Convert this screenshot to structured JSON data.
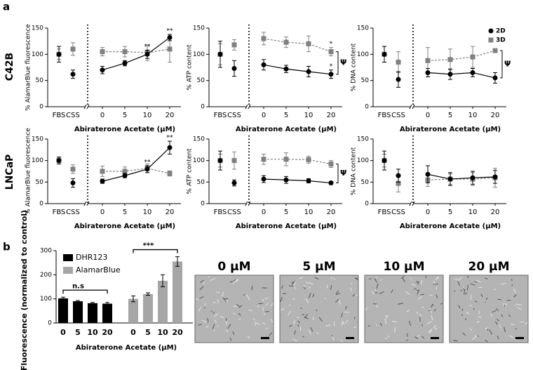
{
  "panel_labels": [
    "a",
    "b"
  ],
  "row_labels": [
    "C42B",
    "LNCaP"
  ],
  "images": [
    {
      "label": "0 µM"
    },
    {
      "label": "5 µM"
    },
    {
      "label": "10 µM"
    },
    {
      "label": "20 µM"
    }
  ],
  "chart_data": [
    {
      "type": "line",
      "ylabel": "% AlamarBlue fluorescence",
      "xlabel": "Abiraterone Acetate (µM)",
      "ylim": [
        0,
        150
      ],
      "yticks": [
        0,
        50,
        100,
        150
      ],
      "control_categories": [
        "FBS",
        "CSS"
      ],
      "categories": [
        "0",
        "5",
        "10",
        "20"
      ],
      "series": [
        {
          "color": "#000000",
          "marker": "circle",
          "dashed": false,
          "control_values": [
            100,
            62
          ],
          "control_errors": [
            15,
            8
          ],
          "values": [
            70,
            83,
            100,
            132
          ],
          "errors": [
            7,
            5,
            8,
            6
          ],
          "annotations": [
            null,
            null,
            "**",
            "**"
          ]
        },
        {
          "color": "#808080",
          "marker": "square",
          "dashed": true,
          "control_values": [
            100,
            110
          ],
          "control_errors": [
            10,
            12
          ],
          "values": [
            105,
            105,
            103,
            110
          ],
          "errors": [
            8,
            10,
            15,
            25
          ],
          "annotations": [
            null,
            null,
            null,
            null
          ]
        }
      ]
    },
    {
      "type": "line",
      "ylabel": "% ATP content",
      "xlabel": "Abiraterone Acetate (µM)",
      "ylim": [
        0,
        150
      ],
      "yticks": [
        0,
        50,
        100,
        150
      ],
      "control_categories": [
        "FBS",
        "CSS"
      ],
      "categories": [
        "0",
        "5",
        "10",
        "20"
      ],
      "bracket_label": "Ψ",
      "series": [
        {
          "color": "#000000",
          "marker": "circle",
          "dashed": false,
          "control_values": [
            100,
            73
          ],
          "control_errors": [
            25,
            15
          ],
          "values": [
            80,
            72,
            67,
            62
          ],
          "errors": [
            10,
            7,
            10,
            8
          ],
          "annotations": [
            null,
            null,
            null,
            "*"
          ]
        },
        {
          "color": "#808080",
          "marker": "square",
          "dashed": true,
          "control_values": [
            100,
            118
          ],
          "control_errors": [
            20,
            10
          ],
          "values": [
            130,
            123,
            120,
            105
          ],
          "errors": [
            12,
            10,
            15,
            8
          ],
          "annotations": [
            null,
            null,
            null,
            "*"
          ]
        }
      ]
    },
    {
      "type": "line",
      "ylabel": "% DNA content",
      "xlabel": "Abiraterone Acetate (µM)",
      "ylim": [
        0,
        150
      ],
      "yticks": [
        0,
        50,
        100,
        150
      ],
      "legend": "top-right",
      "control_categories": [
        "FBS",
        "CSS"
      ],
      "categories": [
        "0",
        "5",
        "10",
        "20"
      ],
      "bracket_label": "Ψ",
      "series": [
        {
          "name": "2D",
          "color": "#000000",
          "marker": "circle",
          "dashed": false,
          "control_values": [
            100,
            52
          ],
          "control_errors": [
            15,
            15
          ],
          "values": [
            65,
            62,
            65,
            55
          ],
          "errors": [
            8,
            10,
            8,
            10
          ],
          "annotations": [
            null,
            null,
            null,
            null
          ]
        },
        {
          "name": "3D",
          "color": "#808080",
          "marker": "square",
          "dashed": true,
          "control_values": [
            100,
            85
          ],
          "control_errors": [
            15,
            20
          ],
          "values": [
            88,
            90,
            95,
            107
          ],
          "errors": [
            25,
            20,
            20,
            3
          ],
          "annotations": [
            null,
            null,
            null,
            null
          ]
        }
      ]
    },
    {
      "type": "line",
      "ylabel": "% AlamarBlue fluorescence",
      "xlabel": "Abiraterone Acetate (µM)",
      "ylim": [
        0,
        150
      ],
      "yticks": [
        0,
        50,
        100,
        150
      ],
      "control_categories": [
        "FBS",
        "CSS"
      ],
      "categories": [
        "0",
        "5",
        "10",
        "20"
      ],
      "series": [
        {
          "color": "#000000",
          "marker": "circle",
          "dashed": false,
          "control_values": [
            100,
            48
          ],
          "control_errors": [
            8,
            10
          ],
          "values": [
            52,
            65,
            80,
            130
          ],
          "errors": [
            5,
            5,
            8,
            15
          ],
          "annotations": [
            null,
            null,
            "**",
            "**"
          ]
        },
        {
          "color": "#808080",
          "marker": "square",
          "dashed": true,
          "control_values": [
            100,
            80
          ],
          "control_errors": [
            8,
            10
          ],
          "values": [
            75,
            75,
            82,
            70
          ],
          "errors": [
            12,
            10,
            10,
            6
          ],
          "annotations": [
            null,
            null,
            null,
            null
          ]
        }
      ]
    },
    {
      "type": "line",
      "ylabel": "% ATP content",
      "xlabel": "Abiraterone Acetate (µM)",
      "ylim": [
        0,
        150
      ],
      "yticks": [
        0,
        50,
        100,
        150
      ],
      "control_categories": [
        "FBS",
        "CSS"
      ],
      "categories": [
        "0",
        "5",
        "10",
        "20"
      ],
      "bracket_label": "Ψ",
      "series": [
        {
          "color": "#000000",
          "marker": "circle",
          "dashed": false,
          "control_values": [
            100,
            48
          ],
          "control_errors": [
            22,
            7
          ],
          "values": [
            57,
            55,
            53,
            48
          ],
          "errors": [
            8,
            8,
            5,
            3
          ],
          "annotations": [
            null,
            null,
            null,
            null
          ]
        },
        {
          "color": "#808080",
          "marker": "square",
          "dashed": true,
          "control_values": [
            100,
            100
          ],
          "control_errors": [
            15,
            20
          ],
          "values": [
            103,
            103,
            102,
            92
          ],
          "errors": [
            12,
            15,
            8,
            8
          ],
          "annotations": [
            null,
            null,
            null,
            null
          ]
        }
      ]
    },
    {
      "type": "line",
      "ylabel": "% DNA content",
      "xlabel": "Abiraterone Acetate (µM)",
      "ylim": [
        0,
        150
      ],
      "yticks": [
        0,
        50,
        100,
        150
      ],
      "control_categories": [
        "FBS",
        "CSS"
      ],
      "categories": [
        "0",
        "5",
        "10",
        "20"
      ],
      "series": [
        {
          "color": "#000000",
          "marker": "circle",
          "dashed": false,
          "control_values": [
            100,
            65
          ],
          "control_errors": [
            22,
            15
          ],
          "values": [
            68,
            57,
            60,
            62
          ],
          "errors": [
            20,
            15,
            15,
            15
          ],
          "annotations": [
            null,
            null,
            null,
            null
          ]
        },
        {
          "color": "#808080",
          "marker": "square",
          "dashed": true,
          "control_values": [
            100,
            47
          ],
          "control_errors": [
            15,
            20
          ],
          "values": [
            55,
            57,
            57,
            60
          ],
          "errors": [
            15,
            12,
            15,
            22
          ],
          "annotations": [
            null,
            null,
            null,
            null
          ]
        }
      ]
    },
    {
      "type": "bar",
      "ylabel": "Fluorescence (normalized to control)",
      "xlabel": "Abiraterone Acetate (µM)",
      "ylim": [
        0,
        300
      ],
      "yticks": [
        0,
        100,
        200,
        300
      ],
      "legend": "top-left",
      "categories": [
        "0",
        "5",
        "10",
        "20"
      ],
      "series": [
        {
          "name": "DHR123",
          "color": "#000000",
          "values": [
            102,
            90,
            82,
            80
          ],
          "errors": [
            5,
            3,
            3,
            5
          ],
          "bracket_label": "n.s"
        },
        {
          "name": "AlamarBlue",
          "color": "#a6a6a6",
          "values": [
            100,
            120,
            175,
            255
          ],
          "errors": [
            12,
            5,
            25,
            20
          ],
          "bracket_label": "***"
        }
      ]
    }
  ]
}
